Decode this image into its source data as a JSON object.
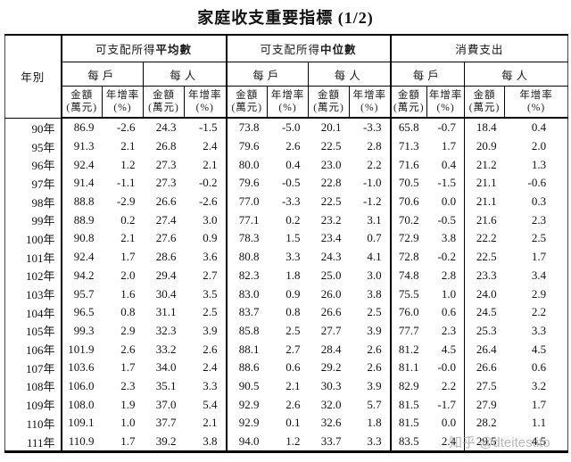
{
  "title": "家庭收支重要指標 (1/2)",
  "watermark": "知乎 @dteitestito",
  "table": {
    "year_header": "年別",
    "groups": [
      {
        "prefix": "可支配所得",
        "bold": "平均數"
      },
      {
        "prefix": "可支配所得",
        "bold": "中位數"
      },
      {
        "prefix": "消費支出",
        "bold": ""
      }
    ],
    "sub_household": "每戶",
    "sub_person": "每人",
    "amount_label": "金額",
    "amount_unit": "(萬元)",
    "rate_label": "年增率",
    "rate_unit": "(%)",
    "rows": [
      {
        "year": "90年",
        "values": [
          "86.9",
          "-2.6",
          "24.3",
          "-1.5",
          "73.8",
          "-5.0",
          "20.1",
          "-3.3",
          "65.8",
          "-0.7",
          "18.4",
          "0.4"
        ]
      },
      {
        "year": "95年",
        "values": [
          "91.3",
          "2.1",
          "26.8",
          "2.4",
          "79.6",
          "2.6",
          "22.5",
          "2.8",
          "71.3",
          "1.7",
          "20.9",
          "2.0"
        ]
      },
      {
        "year": "96年",
        "values": [
          "92.4",
          "1.2",
          "27.3",
          "2.1",
          "80.0",
          "0.4",
          "23.0",
          "2.2",
          "71.6",
          "0.4",
          "21.2",
          "1.3"
        ]
      },
      {
        "year": "97年",
        "values": [
          "91.4",
          "-1.1",
          "27.3",
          "-0.2",
          "79.6",
          "-0.5",
          "22.8",
          "-1.0",
          "70.5",
          "-1.5",
          "21.1",
          "-0.6"
        ]
      },
      {
        "year": "98年",
        "values": [
          "88.8",
          "-2.9",
          "26.6",
          "-2.6",
          "77.0",
          "-3.3",
          "22.5",
          "-1.2",
          "70.6",
          "0.0",
          "21.1",
          "0.3"
        ]
      },
      {
        "year": "99年",
        "values": [
          "88.9",
          "0.2",
          "27.4",
          "3.0",
          "77.1",
          "0.2",
          "23.2",
          "3.1",
          "70.2",
          "-0.5",
          "21.6",
          "2.3"
        ]
      },
      {
        "year": "100年",
        "values": [
          "90.8",
          "2.1",
          "27.6",
          "0.9",
          "78.3",
          "1.5",
          "23.4",
          "0.7",
          "72.9",
          "3.8",
          "22.2",
          "2.5"
        ]
      },
      {
        "year": "101年",
        "values": [
          "92.4",
          "1.7",
          "28.6",
          "3.6",
          "80.8",
          "3.3",
          "24.3",
          "4.1",
          "72.8",
          "-0.2",
          "22.5",
          "1.7"
        ]
      },
      {
        "year": "102年",
        "values": [
          "94.2",
          "2.0",
          "29.4",
          "2.7",
          "82.3",
          "1.8",
          "25.0",
          "3.0",
          "74.8",
          "2.8",
          "23.3",
          "3.4"
        ]
      },
      {
        "year": "103年",
        "values": [
          "95.7",
          "1.6",
          "30.4",
          "3.5",
          "83.0",
          "0.9",
          "26.0",
          "3.8",
          "75.5",
          "1.0",
          "24.0",
          "2.9"
        ]
      },
      {
        "year": "104年",
        "values": [
          "96.5",
          "0.8",
          "31.1",
          "2.5",
          "83.7",
          "0.8",
          "26.6",
          "2.5",
          "76.0",
          "0.6",
          "24.5",
          "2.2"
        ]
      },
      {
        "year": "105年",
        "values": [
          "99.3",
          "2.9",
          "32.3",
          "3.9",
          "85.8",
          "2.5",
          "27.7",
          "3.9",
          "77.7",
          "2.3",
          "25.3",
          "3.3"
        ]
      },
      {
        "year": "106年",
        "values": [
          "101.9",
          "2.6",
          "33.2",
          "2.6",
          "88.1",
          "2.7",
          "28.4",
          "2.6",
          "81.2",
          "4.5",
          "26.4",
          "4.5"
        ]
      },
      {
        "year": "107年",
        "values": [
          "103.6",
          "1.7",
          "34.0",
          "2.4",
          "88.6",
          "0.6",
          "29.2",
          "2.6",
          "81.1",
          "-0.0",
          "26.6",
          "0.6"
        ]
      },
      {
        "year": "108年",
        "values": [
          "106.0",
          "2.3",
          "35.1",
          "3.3",
          "90.5",
          "2.1",
          "30.3",
          "3.9",
          "82.9",
          "2.2",
          "27.5",
          "3.2"
        ]
      },
      {
        "year": "109年",
        "values": [
          "108.0",
          "1.9",
          "37.0",
          "5.4",
          "92.9",
          "2.6",
          "32.0",
          "5.7",
          "81.5",
          "-1.7",
          "27.9",
          "1.7"
        ]
      },
      {
        "year": "110年",
        "values": [
          "109.1",
          "1.0",
          "37.7",
          "2.1",
          "92.9",
          "0.1",
          "32.6",
          "1.8",
          "81.5",
          "0.0",
          "28.2",
          "1.1"
        ]
      },
      {
        "year": "111年",
        "values": [
          "110.9",
          "1.7",
          "39.2",
          "3.8",
          "94.0",
          "1.2",
          "33.7",
          "3.3",
          "83.5",
          "2.4",
          "29.5",
          "4.5"
        ]
      }
    ]
  }
}
